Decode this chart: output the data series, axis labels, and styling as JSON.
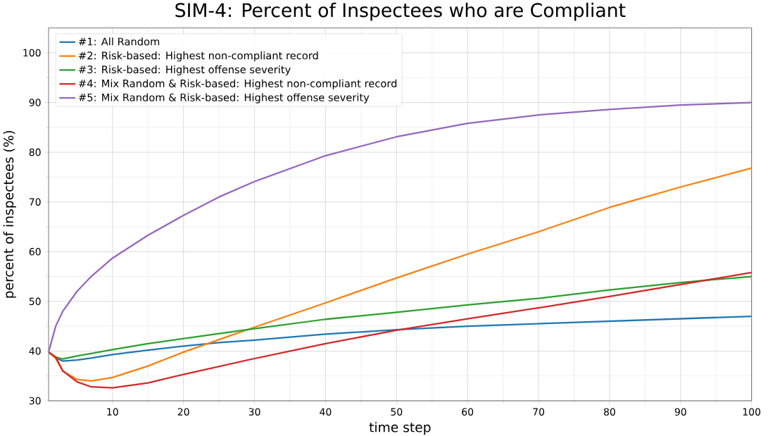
{
  "chart_data": {
    "type": "line",
    "title": "SIM-4: Percent of Inspectees who are Compliant",
    "xlabel": "time step",
    "ylabel": "percent of inspectees (%)",
    "x": [
      1,
      2,
      3,
      5,
      7,
      10,
      15,
      20,
      25,
      30,
      40,
      50,
      60,
      70,
      80,
      90,
      100
    ],
    "series": [
      {
        "name": "#1: All Random",
        "color": "#1f77b4",
        "values": [
          39.8,
          38.6,
          38,
          38.2,
          38.6,
          39.3,
          40.2,
          41,
          41.7,
          42.2,
          43.4,
          44.3,
          45,
          45.5,
          46,
          46.5,
          47
        ]
      },
      {
        "name": "#2: Risk-based: Highest non-compliant record",
        "color": "#ff7f0e",
        "values": [
          39.8,
          38.5,
          36,
          34.3,
          34,
          34.7,
          37,
          39.8,
          42.3,
          44.8,
          49.7,
          54.7,
          59.5,
          64,
          68.9,
          73,
          76.8
        ]
      },
      {
        "name": "#3: Risk-based: Highest offense severity",
        "color": "#2ca02c",
        "values": [
          39.8,
          38.8,
          38.4,
          39,
          39.5,
          40.3,
          41.5,
          42.5,
          43.5,
          44.5,
          46.4,
          47.8,
          49.3,
          50.6,
          52.3,
          53.8,
          55
        ]
      },
      {
        "name": "#4: Mix Random & Risk-based: Highest non-compliant record",
        "color": "#d62728",
        "values": [
          39.8,
          38.8,
          36,
          33.8,
          32.8,
          32.6,
          33.6,
          35.3,
          36.9,
          38.5,
          41.5,
          44.2,
          46.5,
          48.7,
          51,
          53.4,
          55.8
        ]
      },
      {
        "name": "#5: Mix Random & Risk-based: Highest offense severity",
        "color": "#9467bd",
        "values": [
          39.8,
          45,
          48,
          52,
          55,
          58.7,
          63.3,
          67.3,
          71,
          74.1,
          79.3,
          83.1,
          85.8,
          87.5,
          88.6,
          89.5,
          90
        ]
      }
    ],
    "xlim": [
      1,
      100
    ],
    "ylim": [
      30,
      105
    ],
    "xticks": [
      10,
      20,
      30,
      40,
      50,
      60,
      70,
      80,
      90,
      100
    ],
    "yticks": [
      30,
      40,
      50,
      60,
      70,
      80,
      90,
      100
    ],
    "grid": true,
    "legend": "top left",
    "marker": "none",
    "line_style": "solid"
  }
}
